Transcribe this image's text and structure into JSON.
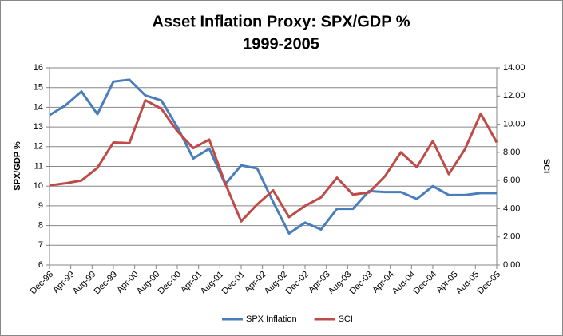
{
  "chart_data": {
    "type": "line",
    "title": "Asset Inflation Proxy: SPX/GDP %",
    "subtitle": "1999-2005",
    "y_label": "SPX/GDP %",
    "y2_label": "SCI",
    "x": [
      0,
      3,
      6,
      9,
      12,
      15,
      18,
      21,
      24,
      27,
      30,
      33,
      36,
      39,
      42,
      45,
      48,
      51,
      54,
      57,
      60,
      63,
      66,
      69,
      72,
      75,
      78,
      81,
      84
    ],
    "xlim": [
      0,
      84
    ],
    "xticks": [
      {
        "value": 0,
        "label": "Dec-98"
      },
      {
        "value": 4,
        "label": "Apr-99"
      },
      {
        "value": 8,
        "label": "Aug-99"
      },
      {
        "value": 12,
        "label": "Dec-99"
      },
      {
        "value": 16,
        "label": "Apr-00"
      },
      {
        "value": 20,
        "label": "Aug-00"
      },
      {
        "value": 24,
        "label": "Dec-00"
      },
      {
        "value": 28,
        "label": "Apr-01"
      },
      {
        "value": 32,
        "label": "Aug-01"
      },
      {
        "value": 36,
        "label": "Dec-01"
      },
      {
        "value": 40,
        "label": "Apr-02"
      },
      {
        "value": 44,
        "label": "Aug-02"
      },
      {
        "value": 48,
        "label": "Dec-02"
      },
      {
        "value": 52,
        "label": "Apr-03"
      },
      {
        "value": 56,
        "label": "Aug-03"
      },
      {
        "value": 60,
        "label": "Dec-03"
      },
      {
        "value": 64,
        "label": "Apr-04"
      },
      {
        "value": 68,
        "label": "Aug-04"
      },
      {
        "value": 72,
        "label": "Dec-04"
      },
      {
        "value": 76,
        "label": "Apr-05"
      },
      {
        "value": 80,
        "label": "Aug-05"
      },
      {
        "value": 84,
        "label": "Dec-05"
      }
    ],
    "ylim": [
      6,
      16
    ],
    "yticks": [
      6,
      7,
      8,
      9,
      10,
      11,
      12,
      13,
      14,
      15,
      16
    ],
    "y2lim": [
      0,
      14
    ],
    "y2ticks": [
      {
        "value": 0,
        "label": "0.00"
      },
      {
        "value": 2,
        "label": "2.00"
      },
      {
        "value": 4,
        "label": "4.00"
      },
      {
        "value": 6,
        "label": "6.00"
      },
      {
        "value": 8,
        "label": "8.00"
      },
      {
        "value": 10,
        "label": "10.00"
      },
      {
        "value": 12,
        "label": "12.00"
      },
      {
        "value": 14,
        "label": "14.00"
      }
    ],
    "grid": true,
    "legend": "bottom",
    "series": [
      {
        "name": "SPX Inflation",
        "color": "#4a7ebb",
        "values": [
          13.6,
          14.1,
          14.8,
          13.65,
          15.3,
          15.4,
          14.6,
          14.35,
          13.0,
          11.4,
          11.9,
          10.1,
          11.05,
          10.9,
          9.2,
          7.6,
          8.15,
          7.8,
          8.85,
          8.85,
          9.75,
          9.7,
          9.7,
          9.35,
          10.0,
          9.55,
          9.55,
          9.65,
          9.65
        ]
      },
      {
        "name": "SCI",
        "color": "#be4b48",
        "axis": "y2",
        "values": [
          5.65,
          5.8,
          6.0,
          6.9,
          8.7,
          8.65,
          11.7,
          11.1,
          9.5,
          8.3,
          8.9,
          5.8,
          3.1,
          4.3,
          5.3,
          3.4,
          4.2,
          4.8,
          6.2,
          5.0,
          5.15,
          6.3,
          8.0,
          6.95,
          8.8,
          6.45,
          8.2,
          10.75,
          8.7
        ]
      }
    ]
  }
}
